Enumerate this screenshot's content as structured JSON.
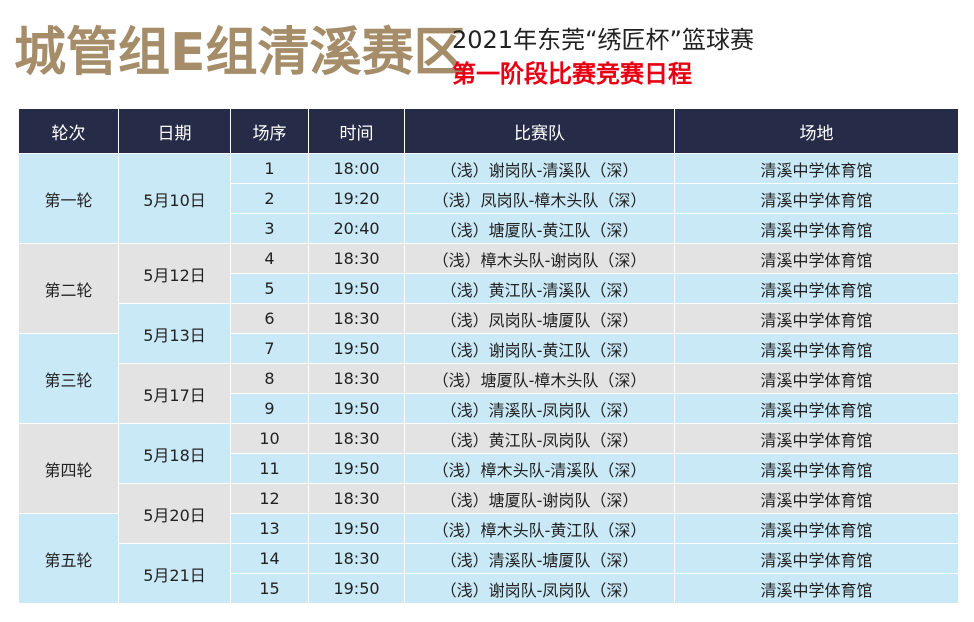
{
  "header": {
    "title": "城管组E组清溪赛区",
    "subtitle": "2021年东莞“绣匠杯”篮球赛",
    "subtitle2": "第一阶段比赛竞赛日程"
  },
  "colors": {
    "title": "#a58d6a",
    "header_bg": "#262b48",
    "red": "#e60012",
    "blue": "#c9e9f7",
    "gray": "#e3e3e3"
  },
  "table": {
    "headers": [
      "轮次",
      "日期",
      "场序",
      "时间",
      "比赛队",
      "场地"
    ],
    "rounds": [
      "第一轮",
      "第二轮",
      "第三轮",
      "第四轮",
      "第五轮"
    ],
    "dates": [
      "5月10日",
      "5月12日",
      "5月13日",
      "5月17日",
      "5月18日",
      "5月20日",
      "5月21日"
    ],
    "rows": [
      {
        "seq": "1",
        "time": "18:00",
        "teams": "（浅）谢岗队-清溪队（深）",
        "venue": "清溪中学体育馆"
      },
      {
        "seq": "2",
        "time": "19:20",
        "teams": "（浅）凤岗队-樟木头队（深）",
        "venue": "清溪中学体育馆"
      },
      {
        "seq": "3",
        "time": "20:40",
        "teams": "（浅）塘厦队-黄江队（深）",
        "venue": "清溪中学体育馆"
      },
      {
        "seq": "4",
        "time": "18:30",
        "teams": "（浅）樟木头队-谢岗队（深）",
        "venue": "清溪中学体育馆"
      },
      {
        "seq": "5",
        "time": "19:50",
        "teams": "（浅）黄江队-清溪队（深）",
        "venue": "清溪中学体育馆"
      },
      {
        "seq": "6",
        "time": "18:30",
        "teams": "（浅）凤岗队-塘厦队（深）",
        "venue": "清溪中学体育馆"
      },
      {
        "seq": "7",
        "time": "19:50",
        "teams": "（浅）谢岗队-黄江队（深）",
        "venue": "清溪中学体育馆"
      },
      {
        "seq": "8",
        "time": "18:30",
        "teams": "（浅）塘厦队-樟木头队（深）",
        "venue": "清溪中学体育馆"
      },
      {
        "seq": "9",
        "time": "19:50",
        "teams": "（浅）清溪队-凤岗队（深）",
        "venue": "清溪中学体育馆"
      },
      {
        "seq": "10",
        "time": "18:30",
        "teams": "（浅）黄江队-凤岗队（深）",
        "venue": "清溪中学体育馆"
      },
      {
        "seq": "11",
        "time": "19:50",
        "teams": "（浅）樟木头队-清溪队（深）",
        "venue": "清溪中学体育馆"
      },
      {
        "seq": "12",
        "time": "18:30",
        "teams": "（浅）塘厦队-谢岗队（深）",
        "venue": "清溪中学体育馆"
      },
      {
        "seq": "13",
        "time": "19:50",
        "teams": "（浅）樟木头队-黄江队（深）",
        "venue": "清溪中学体育馆"
      },
      {
        "seq": "14",
        "time": "18:30",
        "teams": "（浅）清溪队-塘厦队（深）",
        "venue": "清溪中学体育馆"
      },
      {
        "seq": "15",
        "time": "19:50",
        "teams": "（浅）谢岗队-凤岗队（深）",
        "venue": "清溪中学体育馆"
      }
    ]
  }
}
